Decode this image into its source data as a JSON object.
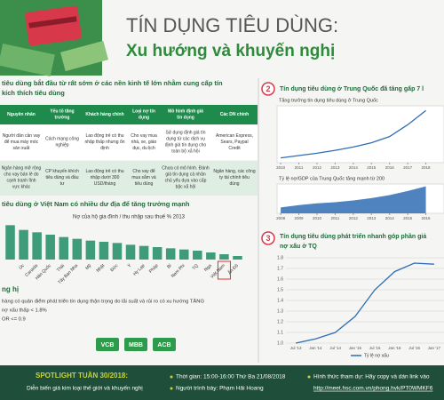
{
  "header": {
    "title": "TÍN DỤNG TIÊU DÙNG:",
    "subtitle": "Xu hướng và khuyến nghị"
  },
  "section1": {
    "heading": [
      "tiêu dùng bắt đầu từ rất sớm ở các nền kinh tế lớn nhằm cung cấp tín",
      "kích thích tiêu dùng"
    ],
    "table": {
      "header": [
        "Nguyên nhân",
        "Yếu tố tăng trưởng",
        "Khách hàng chính",
        "Loại nợ tín dụng",
        "Mô hình định giá tín dụng",
        "Các DN chính"
      ],
      "rows": [
        [
          "Người dân cần vay để mua máy móc sản xuất",
          "Cách mạng công nghiệp",
          "Lao động trẻ có thu nhập thấp nhưng ổn định",
          "Cho vay mua nhà, xe, giáo dục, du lịch",
          "Sử dụng định giá tín dụng từ các dịch vụ định giá tín dụng cho toàn bộ xã hội",
          "American Express, Sears, Paypal Credit"
        ],
        [
          "Ngân hàng mở rộng cho vay bán lẻ do cạnh tranh lĩnh vực khác",
          "CP khuyến khích tiêu dùng và đầu tư",
          "Lao động trẻ có thu nhập dưới 300 USD/tháng",
          "Cho vay để mua sắm và tiêu dùng",
          "Chưa có mô hình. Đánh giá tín dụng cá nhân chủ yếu dựa vào cấp bậc xã hội",
          "Ngân hàng, các công ty tài chính tiêu dùng"
        ]
      ]
    }
  },
  "section_vn": {
    "heading": "tiêu dùng ở Việt Nam có nhiều dư địa để tăng trưởng mạnh"
  },
  "recommend": {
    "heading": "ng hị",
    "lines": [
      "hàng có quản điểm phát triển tín dụng thận trọng do lãi suất và rủi ro có xu hướng TĂNG",
      "nợ xấu thấp < 1.8%",
      "OR <= 0.9"
    ],
    "buttons": [
      "VCB",
      "MBB",
      "ACB"
    ]
  },
  "section2": {
    "number": "2",
    "heading": "Tín dụng tiêu dùng ở Trung Quốc đã tăng gấp 7 l"
  },
  "section3": {
    "number": "3",
    "heading": [
      "Tín dụng tiêu dùng phát triển nhanh góp phần giả",
      "nợ xấu ở TQ"
    ]
  },
  "chart_data": [
    {
      "type": "bar",
      "title": "Nợ của hộ gia đình / thu nhập sau thuế % 2013",
      "color": "#3f9c7a",
      "categories": [
        null,
        "Úc",
        "Canada",
        "Hàn Quốc",
        "Thái",
        "Tây Ban Nha",
        "Mỹ",
        "Nhật",
        "Đức",
        "Ý",
        "Hy Lạp",
        "Pháp",
        "Bỉ",
        "Nam Phi",
        "TQ",
        "Nga",
        "Việt Nam",
        "Ấn Độ"
      ],
      "values": [
        290,
        250,
        230,
        210,
        190,
        175,
        160,
        150,
        140,
        125,
        115,
        105,
        95,
        85,
        75,
        60,
        45,
        30
      ],
      "ylim": [
        0,
        300
      ],
      "highlight": "Việt Nam"
    },
    {
      "type": "line",
      "title": "Tăng trưởng tín dụng tiêu dùng ở Trung Quốc",
      "color": "#2f6db5",
      "x": [
        2010,
        2011,
        2012,
        2013,
        2014,
        2015,
        2016,
        2017,
        2018
      ],
      "values": [
        1,
        1.5,
        2,
        2.6,
        3.3,
        4.2,
        5.5,
        8,
        11
      ],
      "xlim": [
        2009.8,
        2019
      ],
      "xticks": [
        2010,
        2011,
        2012,
        2013,
        2014,
        2015,
        2016,
        2017,
        2018
      ],
      "ylim": [
        0,
        12
      ]
    },
    {
      "type": "area",
      "title": "Tỷ lệ nợ/GDP của Trung Quốc tăng mạnh từ 200",
      "color": "#2f6db5",
      "x": [
        2008,
        2009,
        2010,
        2011,
        2012,
        2013,
        2014,
        2015,
        2016
      ],
      "values": [
        10,
        14,
        17,
        19,
        22,
        26,
        31,
        38,
        46
      ],
      "xlim": [
        2007.8,
        2017
      ],
      "xticks": [
        2008,
        2009,
        2010,
        2011,
        2012,
        2013,
        2014,
        2015,
        2016
      ],
      "ylim": [
        0,
        50
      ]
    },
    {
      "type": "line",
      "color": "#2f6db5",
      "categories": [
        "Jul '13",
        "Jan '14",
        "Jul '14",
        "Jan '15",
        "Jul '15",
        "Jan '16",
        "Jul '16",
        "Jan '17"
      ],
      "series": [
        {
          "name": "Tỷ lệ nợ xấu",
          "color": "#2f6db5",
          "values": [
            1.0,
            1.04,
            1.1,
            1.25,
            1.5,
            1.67,
            1.75,
            1.74
          ]
        }
      ],
      "ylim": [
        1.0,
        1.8
      ],
      "yticks": [
        {
          "value": 1,
          "label": "1.0"
        },
        1.1,
        1.2,
        1.3,
        1.4,
        1.5,
        1.6,
        1.7,
        1.8
      ],
      "grid": true
    }
  ],
  "footer": {
    "spotlight": "SPOTLIGHT TUẦN 30/2018:",
    "topic": "Diễn biến giá kim loại thế giới và khuyến nghị",
    "time": "Thời gian: 15:00-16:00 Thứ Ba 21/08/2018",
    "presenter": "Người trình bày: Phạm Hải Hoang",
    "attend": "Hình thức tham dự: Hãy copy và dán link vào",
    "link": "http://meet.hsc.com.vn/phong.hvk/PT0WMKF6"
  }
}
